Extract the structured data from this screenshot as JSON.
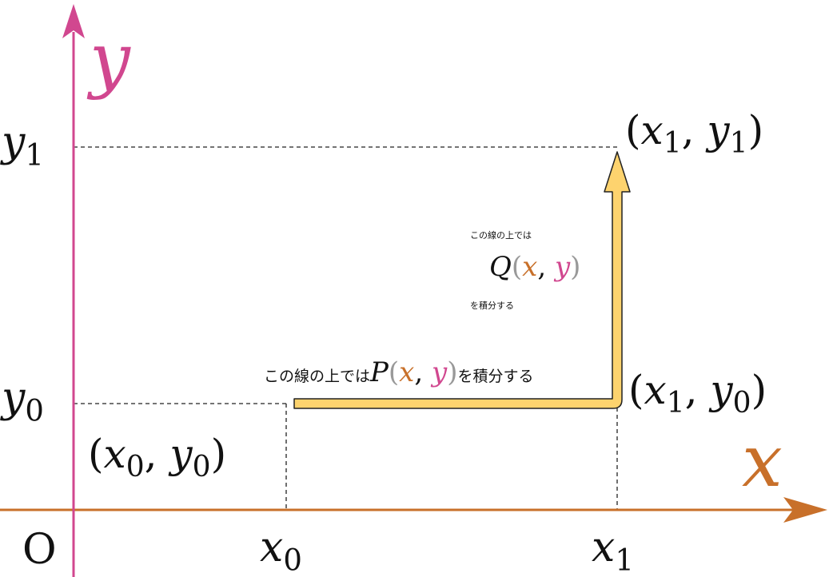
{
  "labels": {
    "y_axis": [
      {
        "text": "y",
        "italic": true,
        "color": "#d1478f"
      }
    ],
    "x_axis": [
      {
        "text": "x",
        "italic": true,
        "color": "#c8702a"
      }
    ],
    "origin": [
      {
        "text": "O"
      }
    ],
    "x0": [
      {
        "text": "x",
        "italic": true
      },
      {
        "text": "0",
        "sub": true
      }
    ],
    "x1": [
      {
        "text": "x",
        "italic": true
      },
      {
        "text": "1",
        "sub": true
      }
    ],
    "y0": [
      {
        "text": "y",
        "italic": true
      },
      {
        "text": "0",
        "sub": true
      }
    ],
    "y1": [
      {
        "text": "y",
        "italic": true
      },
      {
        "text": "1",
        "sub": true
      }
    ],
    "point_x0_y0": [
      {
        "text": "("
      },
      {
        "text": "x",
        "italic": true
      },
      {
        "text": "0",
        "sub": true
      },
      {
        "text": ", "
      },
      {
        "text": "y",
        "italic": true
      },
      {
        "text": "0",
        "sub": true
      },
      {
        "text": ")"
      }
    ],
    "point_x1_y0": [
      {
        "text": "("
      },
      {
        "text": "x",
        "italic": true
      },
      {
        "text": "1",
        "sub": true
      },
      {
        "text": ", "
      },
      {
        "text": "y",
        "italic": true
      },
      {
        "text": "0",
        "sub": true
      },
      {
        "text": ")"
      }
    ],
    "point_x1_y1": [
      {
        "text": "("
      },
      {
        "text": "x",
        "italic": true
      },
      {
        "text": "1",
        "sub": true
      },
      {
        "text": ", "
      },
      {
        "text": "y",
        "italic": true
      },
      {
        "text": "1",
        "sub": true
      },
      {
        "text": ")"
      }
    ],
    "note_q_line1": [
      {
        "text": "この線の上では",
        "sans": true
      }
    ],
    "note_q_line2": [
      {
        "text": "Q",
        "italic": true
      },
      {
        "text": "(",
        "color": "#999999"
      },
      {
        "text": "x",
        "italic": true,
        "color": "#c8702a"
      },
      {
        "text": ", "
      },
      {
        "text": "y",
        "italic": true,
        "color": "#d1478f"
      },
      {
        "text": ")",
        "color": "#999999"
      }
    ],
    "note_q_line3": [
      {
        "text": "を積分する",
        "sans": true
      }
    ],
    "note_p": [
      {
        "text": "この線の上では",
        "sans": true
      },
      {
        "text": "P",
        "italic": true
      },
      {
        "text": "(",
        "color": "#999999"
      },
      {
        "text": "x",
        "italic": true,
        "color": "#c8702a"
      },
      {
        "text": ", "
      },
      {
        "text": "y",
        "italic": true,
        "color": "#d1478f"
      },
      {
        "text": ")",
        "color": "#999999"
      },
      {
        "text": "を積分する",
        "sans": true
      }
    ]
  }
}
